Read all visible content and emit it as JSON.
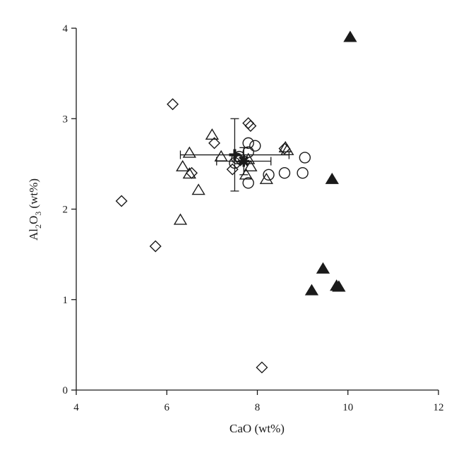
{
  "chart_data": {
    "type": "scatter",
    "title": "",
    "xlabel": "CaO (wt%)",
    "ylabel": {
      "prefix": "Al",
      "sub1": "2",
      "mid": "O",
      "sub2": "3",
      "suffix": " (wt%)"
    },
    "xlim": [
      4,
      12
    ],
    "ylim": [
      0,
      4
    ],
    "xticks": [
      "4",
      "6",
      "8",
      "10",
      "12"
    ],
    "yticks": [
      "0",
      "1",
      "2",
      "3",
      "4"
    ],
    "grid": false,
    "legend": "none",
    "series": [
      {
        "marker": "diamond-open",
        "points": [
          [
            6.13,
            3.16
          ],
          [
            5.0,
            2.09
          ],
          [
            5.75,
            1.59
          ],
          [
            7.05,
            2.73
          ],
          [
            6.55,
            2.4
          ],
          [
            7.45,
            2.44
          ],
          [
            7.8,
            2.95
          ],
          [
            7.85,
            2.92
          ],
          [
            8.6,
            2.67
          ],
          [
            7.6,
            2.55
          ],
          [
            8.1,
            0.25
          ]
        ]
      },
      {
        "marker": "triangle-open",
        "points": [
          [
            7.0,
            2.82
          ],
          [
            6.5,
            2.62
          ],
          [
            6.35,
            2.47
          ],
          [
            6.5,
            2.39
          ],
          [
            6.7,
            2.21
          ],
          [
            6.3,
            1.88
          ],
          [
            7.2,
            2.58
          ],
          [
            7.8,
            2.55
          ],
          [
            7.85,
            2.47
          ],
          [
            7.75,
            2.38
          ],
          [
            8.2,
            2.33
          ],
          [
            8.62,
            2.68
          ],
          [
            8.66,
            2.65
          ]
        ]
      },
      {
        "marker": "circle-open",
        "points": [
          [
            7.5,
            2.51
          ],
          [
            7.55,
            2.56
          ],
          [
            7.8,
            2.73
          ],
          [
            7.95,
            2.7
          ],
          [
            7.8,
            2.63
          ],
          [
            8.25,
            2.38
          ],
          [
            8.6,
            2.4
          ],
          [
            9.0,
            2.4
          ],
          [
            9.05,
            2.57
          ],
          [
            7.8,
            2.29
          ],
          [
            7.6,
            2.58
          ]
        ]
      },
      {
        "marker": "triangle-filled",
        "points": [
          [
            10.05,
            3.9
          ],
          [
            9.65,
            2.33
          ],
          [
            9.45,
            1.34
          ],
          [
            9.2,
            1.1
          ],
          [
            9.75,
            1.15
          ],
          [
            9.8,
            1.14
          ]
        ]
      }
    ],
    "error_bars": [
      {
        "x": 7.5,
        "y": 2.6,
        "xerr": 1.2,
        "yerr": 0.4
      },
      {
        "x": 7.7,
        "y": 2.53,
        "xerr": 0.6,
        "yerr": 0.15
      }
    ],
    "means": [
      {
        "marker": "cross-bold",
        "x": 7.5,
        "y": 2.6
      },
      {
        "marker": "star-bold",
        "x": 7.7,
        "y": 2.53
      }
    ]
  }
}
